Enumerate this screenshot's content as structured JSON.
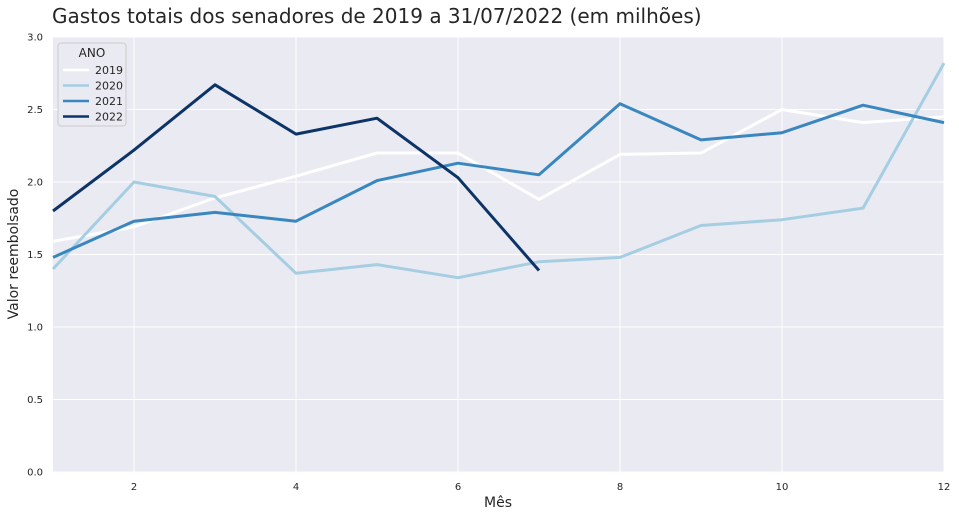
{
  "chart_data": {
    "type": "line",
    "title": "Gastos totais dos senadores de 2019 a 31/07/2022 (em milhões)",
    "xlabel": "Mês",
    "ylabel": "Valor reembolsado",
    "xlim": [
      1,
      12
    ],
    "ylim": [
      0,
      3.0
    ],
    "xticks": [
      2,
      4,
      6,
      8,
      10,
      12
    ],
    "yticks": [
      0.0,
      0.5,
      1.0,
      1.5,
      2.0,
      2.5,
      3.0
    ],
    "grid": true,
    "background": "#eaeaf2",
    "legend": {
      "title": "ANO",
      "position": "top-left"
    },
    "series": [
      {
        "name": "2019",
        "color": "#ffffff",
        "x": [
          1,
          2,
          3,
          4,
          5,
          6,
          7,
          8,
          9,
          10,
          11,
          12
        ],
        "y": [
          1.59,
          1.69,
          1.89,
          2.04,
          2.2,
          2.2,
          1.88,
          2.19,
          2.2,
          2.5,
          2.41,
          2.45
        ]
      },
      {
        "name": "2020",
        "color": "#a6cee3",
        "x": [
          1,
          2,
          3,
          4,
          5,
          6,
          7,
          8,
          9,
          10,
          11,
          12
        ],
        "y": [
          1.4,
          2.0,
          1.9,
          1.37,
          1.43,
          1.34,
          1.45,
          1.48,
          1.7,
          1.74,
          1.82,
          2.82
        ]
      },
      {
        "name": "2021",
        "color": "#3a87c0",
        "x": [
          1,
          2,
          3,
          4,
          5,
          6,
          7,
          8,
          9,
          10,
          11,
          12
        ],
        "y": [
          1.48,
          1.73,
          1.79,
          1.73,
          2.01,
          2.13,
          2.05,
          2.54,
          2.29,
          2.34,
          2.53,
          2.41
        ]
      },
      {
        "name": "2022",
        "color": "#0d3466",
        "x": [
          1,
          2,
          3,
          4,
          5,
          6,
          7
        ],
        "y": [
          1.8,
          2.22,
          2.67,
          2.33,
          2.44,
          2.03,
          1.39
        ]
      }
    ]
  }
}
